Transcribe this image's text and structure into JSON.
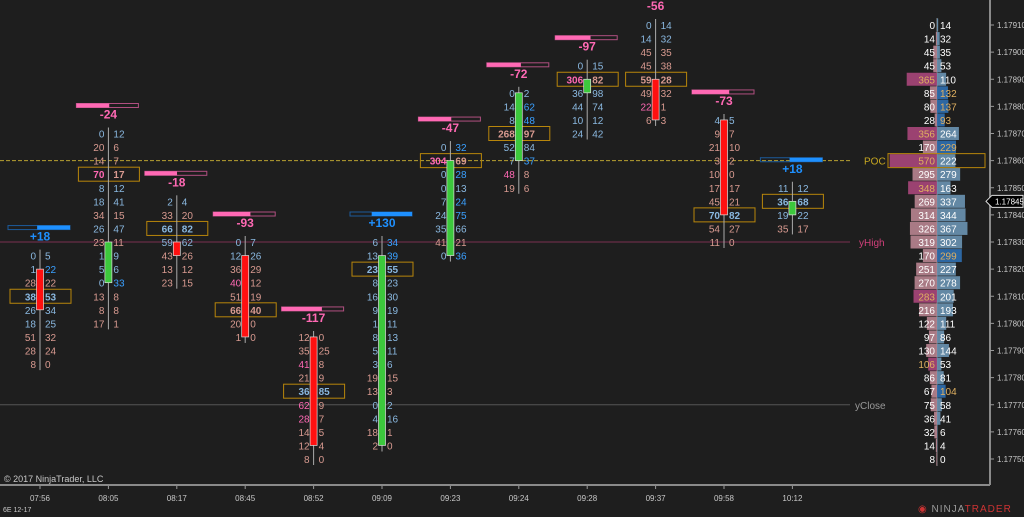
{
  "chart_data": {
    "type": "footprint",
    "instrument": "6E 12-17",
    "copyright": "© 2017 NinjaTrader, LLC",
    "logo": "NINJATRADER",
    "tick_size": 5e-05,
    "y_range": [
      1.1775,
      1.1791
    ],
    "y_ticks": [
      1.1791,
      1.179,
      1.1789,
      1.1788,
      1.1787,
      1.1786,
      1.1785,
      1.1784,
      1.1783,
      1.1782,
      1.1781,
      1.178,
      1.1779,
      1.1778,
      1.1777,
      1.1776,
      1.1775
    ],
    "current_price": "1.17845",
    "colors": {
      "background": "#1e1e1e",
      "up": "#3cc83c",
      "down": "#ff1010",
      "delta_neg": "#ff69b4",
      "delta_pos": "#1e90ff",
      "poc_box": "#b8860b",
      "bid_text": "#d89a90",
      "ask_text": "#8ab8e0"
    },
    "lines": [
      {
        "label": "POC",
        "price": 1.1786,
        "color": "#b8a030",
        "style": "dashed"
      },
      {
        "label": "yHigh",
        "price": 1.1783,
        "color": "#7a3050",
        "style": "solid"
      },
      {
        "label": "yClose",
        "price": 1.1777,
        "color": "#555555",
        "style": "solid"
      }
    ],
    "bars": [
      {
        "time": "07:56",
        "delta": "+18",
        "delta_fill": 0.53,
        "top": 1.17825,
        "open": 1.1782,
        "close": 1.17805,
        "poc": 3,
        "rows": [
          [
            0,
            5
          ],
          [
            1,
            22
          ],
          [
            28,
            22
          ],
          [
            38,
            53
          ],
          [
            26,
            34
          ],
          [
            18,
            25
          ],
          [
            51,
            32
          ],
          [
            28,
            24
          ],
          [
            8,
            0
          ]
        ]
      },
      {
        "time": "08:05",
        "delta": "-24",
        "delta_fill": 0.53,
        "top": 1.1787,
        "open": 1.17815,
        "close": 1.1783,
        "poc": 3,
        "rows": [
          [
            0,
            12
          ],
          [
            20,
            6
          ],
          [
            14,
            7
          ],
          [
            70,
            17
          ],
          [
            8,
            12
          ],
          [
            18,
            41
          ],
          [
            34,
            15
          ],
          [
            26,
            47
          ],
          [
            23,
            11
          ],
          [
            1,
            9
          ],
          [
            5,
            6
          ],
          [
            0,
            33
          ],
          [
            13,
            8
          ],
          [
            8,
            8
          ],
          [
            17,
            1
          ]
        ]
      },
      {
        "time": "08:17",
        "delta": "-18",
        "delta_fill": 0.52,
        "top": 1.17845,
        "open": 1.1783,
        "close": 1.17825,
        "poc": 2,
        "rows": [
          [
            2,
            4
          ],
          [
            33,
            20
          ],
          [
            66,
            82
          ],
          [
            59,
            62
          ],
          [
            43,
            26
          ],
          [
            13,
            12
          ],
          [
            23,
            15
          ]
        ]
      },
      {
        "time": "08:45",
        "delta": "-93",
        "delta_fill": 0.6,
        "top": 1.1783,
        "open": 1.17825,
        "close": 1.17795,
        "poc": 5,
        "rows": [
          [
            0,
            7
          ],
          [
            12,
            26
          ],
          [
            36,
            29
          ],
          [
            40,
            12
          ],
          [
            51,
            19
          ],
          [
            66,
            40
          ],
          [
            20,
            0
          ],
          [
            1,
            0
          ]
        ]
      },
      {
        "time": "08:52",
        "delta": "-117",
        "delta_fill": 0.65,
        "top": 1.17795,
        "open": 1.17795,
        "close": 1.17755,
        "poc": 4,
        "rows": [
          [
            12,
            0
          ],
          [
            35,
            25
          ],
          [
            41,
            8
          ],
          [
            21,
            9
          ],
          [
            36,
            85
          ],
          [
            62,
            9
          ],
          [
            28,
            7
          ],
          [
            14,
            5
          ],
          [
            12,
            4
          ],
          [
            8,
            0
          ]
        ]
      },
      {
        "time": "09:09",
        "delta": "+130",
        "delta_fill": 0.65,
        "top": 1.1783,
        "open": 1.17755,
        "close": 1.17825,
        "poc": 2,
        "rows": [
          [
            6,
            34
          ],
          [
            13,
            39
          ],
          [
            23,
            55
          ],
          [
            8,
            23
          ],
          [
            16,
            30
          ],
          [
            9,
            19
          ],
          [
            1,
            11
          ],
          [
            8,
            13
          ],
          [
            5,
            11
          ],
          [
            3,
            6
          ],
          [
            19,
            15
          ],
          [
            13,
            3
          ],
          [
            0,
            2
          ],
          [
            4,
            16
          ],
          [
            18,
            1
          ],
          [
            2,
            0
          ]
        ]
      },
      {
        "time": "09:23",
        "delta": "-47",
        "delta_fill": 0.53,
        "top": 1.17865,
        "open": 1.17825,
        "close": 1.1786,
        "poc": 1,
        "rows": [
          [
            0,
            32
          ],
          [
            304,
            69
          ],
          [
            0,
            28
          ],
          [
            0,
            13
          ],
          [
            7,
            24
          ],
          [
            24,
            75
          ],
          [
            35,
            66
          ],
          [
            41,
            21
          ],
          [
            0,
            36
          ]
        ]
      },
      {
        "time": "09:24",
        "delta": "-72",
        "delta_fill": 0.55,
        "top": 1.17885,
        "open": 1.1786,
        "close": 1.17885,
        "poc": 3,
        "rows": [
          [
            0,
            2
          ],
          [
            14,
            62
          ],
          [
            8,
            48
          ],
          [
            268,
            97
          ],
          [
            52,
            84
          ],
          [
            7,
            37
          ],
          [
            48,
            8
          ],
          [
            19,
            6
          ]
        ]
      },
      {
        "time": "09:28",
        "delta": "-97",
        "delta_fill": 0.57,
        "top": 1.17895,
        "open": 1.17885,
        "close": 1.1789,
        "poc": 1,
        "rows": [
          [
            0,
            15
          ],
          [
            306,
            82
          ],
          [
            36,
            98
          ],
          [
            44,
            74
          ],
          [
            10,
            12
          ],
          [
            24,
            42
          ]
        ]
      },
      {
        "time": "09:37",
        "delta": "-56",
        "delta_fill": 0.55,
        "top": 1.1791,
        "open": 1.1789,
        "close": 1.17875,
        "poc": 4,
        "rows": [
          [
            0,
            14
          ],
          [
            14,
            32
          ],
          [
            45,
            35
          ],
          [
            45,
            38
          ],
          [
            59,
            28
          ],
          [
            49,
            32
          ],
          [
            22,
            1
          ],
          [
            6,
            3
          ]
        ]
      },
      {
        "time": "09:58",
        "delta": "-73",
        "delta_fill": 0.6,
        "top": 1.17875,
        "open": 1.17875,
        "close": 1.1784,
        "poc": 7,
        "rows": [
          [
            4,
            5
          ],
          [
            9,
            7
          ],
          [
            21,
            10
          ],
          [
            3,
            2
          ],
          [
            10,
            0
          ],
          [
            17,
            17
          ],
          [
            45,
            21
          ],
          [
            70,
            82
          ],
          [
            54,
            27
          ],
          [
            11,
            0
          ]
        ]
      },
      {
        "time": "10:12",
        "delta": "+18",
        "delta_fill": 0.53,
        "top": 1.1785,
        "open": 1.1784,
        "close": 1.17845,
        "poc": 1,
        "rows": [
          [
            11,
            12
          ],
          [
            36,
            68
          ],
          [
            19,
            22
          ],
          [
            35,
            17
          ]
        ]
      }
    ],
    "profile": {
      "top": 1.1791,
      "poc": 10,
      "rows": [
        [
          0,
          14
        ],
        [
          14,
          32
        ],
        [
          45,
          35
        ],
        [
          45,
          53
        ],
        [
          365,
          110
        ],
        [
          85,
          132
        ],
        [
          80,
          137
        ],
        [
          28,
          93
        ],
        [
          356,
          264
        ],
        [
          170,
          229
        ],
        [
          570,
          222
        ],
        [
          295,
          279
        ],
        [
          348,
          163
        ],
        [
          269,
          337
        ],
        [
          314,
          344
        ],
        [
          326,
          367
        ],
        [
          319,
          302
        ],
        [
          170,
          299
        ],
        [
          251,
          227
        ],
        [
          270,
          278
        ],
        [
          283,
          201
        ],
        [
          216,
          193
        ],
        [
          122,
          111
        ],
        [
          97,
          86
        ],
        [
          130,
          144
        ],
        [
          106,
          53
        ],
        [
          86,
          81
        ],
        [
          67,
          104
        ],
        [
          75,
          58
        ],
        [
          36,
          41
        ],
        [
          32,
          6
        ],
        [
          14,
          4
        ],
        [
          8,
          0
        ]
      ],
      "highlight_bid": [
        4,
        8,
        10,
        12,
        20,
        25
      ],
      "highlight_ask": [
        5,
        6,
        7,
        9,
        17,
        27
      ]
    }
  }
}
